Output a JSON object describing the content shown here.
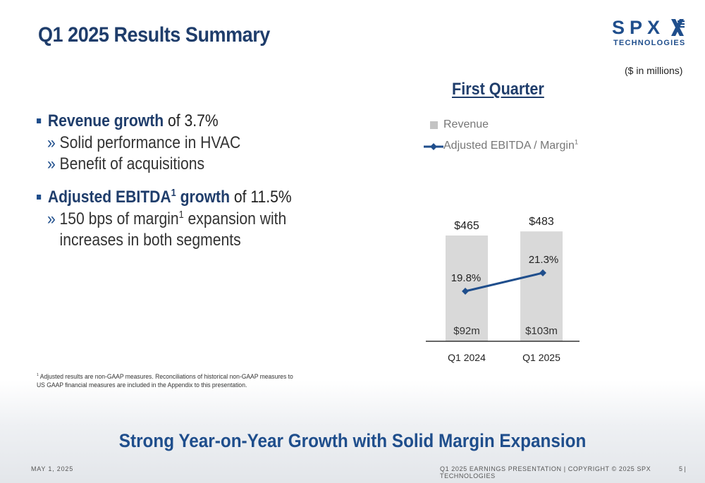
{
  "slide": {
    "title": "Q1 2025 Results Summary",
    "units_note": "($ in millions)",
    "chart_heading": "First Quarter",
    "tagline": "Strong Year-on-Year Growth with Solid Margin Expansion",
    "date": "MAY 1, 2025",
    "footer_text": "Q1 2025 EARNINGS PRESENTATION | COPYRIGHT © 2025 SPX TECHNOLOGIES",
    "page_number": "5 |"
  },
  "logo": {
    "word": "SPX",
    "sub": "TECHNOLOGIES",
    "color": "#1f4e8c"
  },
  "bullets": {
    "b1_bold": "Revenue growth",
    "b1_rest": " of 3.7%",
    "b1_sub1": "Solid performance in HVAC",
    "b1_sub2": "Benefit of acquisitions",
    "b2_bold": "Adjusted EBITDA",
    "b2_sup": "1",
    "b2_bold2": " growth",
    "b2_rest": " of 11.5%",
    "b2_sub1_a": "150 bps of margin",
    "b2_sub1_sup": "1",
    "b2_sub1_b": " expansion with",
    "b2_sub1_c": "increases in both segments",
    "chevron": "»"
  },
  "footnote": {
    "sup": "1",
    "text": "Adjusted results are non-GAAP measures. Reconciliations of historical non-GAAP measures to US GAAP financial measures are included in the Appendix to this presentation."
  },
  "legend": {
    "revenue": "Revenue",
    "ebitda": "Adjusted EBITDA / Margin",
    "ebitda_sup": "1"
  },
  "colors": {
    "title": "#1f3d6b",
    "accent": "#1f4e8c",
    "bar": "#d9d9d9",
    "line": "#1f4e8c"
  },
  "chart_data": {
    "type": "bar",
    "categories": [
      "Q1 2024",
      "Q1 2025"
    ],
    "series": [
      {
        "name": "Revenue",
        "values": [
          465,
          483
        ],
        "labels": [
          "$465",
          "$483"
        ]
      },
      {
        "name": "Adjusted EBITDA / Margin",
        "type": "line",
        "values": [
          19.8,
          21.3
        ],
        "labels": [
          "19.8%",
          "21.3%"
        ],
        "ebitda_labels": [
          "$92m",
          "$103m"
        ]
      }
    ]
  }
}
